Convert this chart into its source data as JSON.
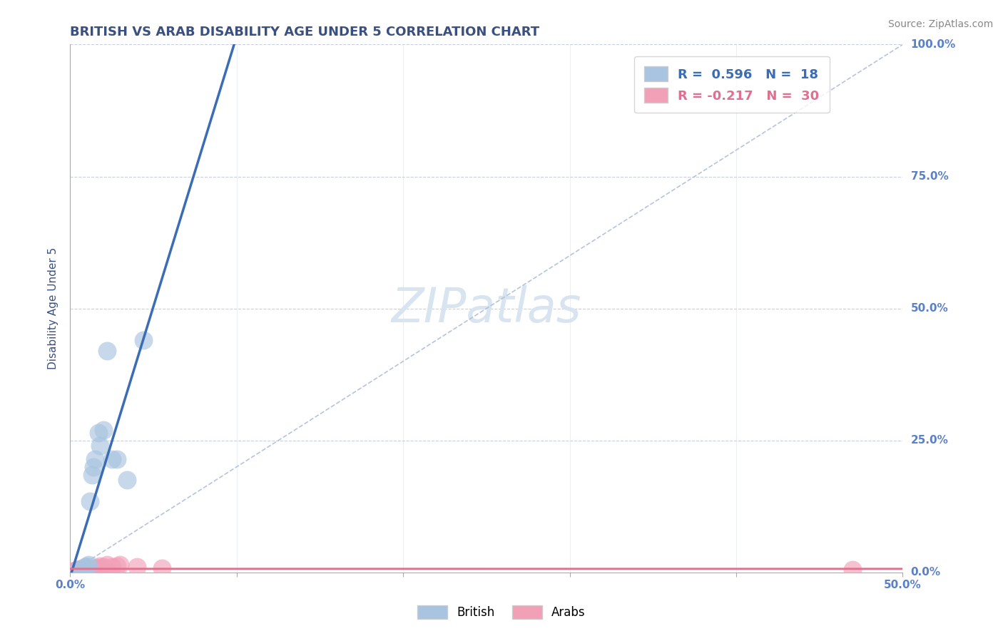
{
  "title": "BRITISH VS ARAB DISABILITY AGE UNDER 5 CORRELATION CHART",
  "source": "Source: ZipAtlas.com",
  "ylabel": "Disability Age Under 5",
  "xlim": [
    0.0,
    0.5
  ],
  "ylim": [
    0.0,
    1.0
  ],
  "xticks": [
    0.0,
    0.1,
    0.2,
    0.3,
    0.4,
    0.5
  ],
  "xticklabels": [
    "0.0%",
    "",
    "",
    "",
    "",
    "50.0%"
  ],
  "yticks": [
    0.0,
    0.25,
    0.5,
    0.75,
    1.0
  ],
  "yticklabels": [
    "0.0%",
    "25.0%",
    "50.0%",
    "75.0%",
    "100.0%"
  ],
  "british_color": "#a8c4e0",
  "arab_color": "#f2a0b8",
  "british_line_color": "#3a6db5",
  "arab_line_color": "#e07090",
  "diagonal_color": "#b0bcd8",
  "legend_british_r": "R =  0.596",
  "legend_british_n": "N =  18",
  "legend_arab_r": "R = -0.217",
  "legend_arab_n": "N =  30",
  "british_x": [
    0.004,
    0.006,
    0.008,
    0.009,
    0.01,
    0.011,
    0.012,
    0.013,
    0.014,
    0.015,
    0.017,
    0.018,
    0.02,
    0.022,
    0.025,
    0.028,
    0.034,
    0.044
  ],
  "british_y": [
    0.003,
    0.005,
    0.008,
    0.01,
    0.012,
    0.015,
    0.135,
    0.185,
    0.2,
    0.215,
    0.265,
    0.24,
    0.27,
    0.42,
    0.215,
    0.215,
    0.175,
    0.44
  ],
  "arab_x": [
    0.001,
    0.002,
    0.003,
    0.004,
    0.004,
    0.005,
    0.005,
    0.006,
    0.006,
    0.007,
    0.007,
    0.008,
    0.009,
    0.01,
    0.01,
    0.011,
    0.012,
    0.013,
    0.014,
    0.016,
    0.017,
    0.018,
    0.02,
    0.022,
    0.025,
    0.028,
    0.03,
    0.04,
    0.055,
    0.47
  ],
  "arab_y": [
    0.002,
    0.003,
    0.003,
    0.004,
    0.005,
    0.003,
    0.005,
    0.004,
    0.006,
    0.004,
    0.006,
    0.005,
    0.006,
    0.005,
    0.007,
    0.005,
    0.004,
    0.006,
    0.007,
    0.009,
    0.008,
    0.012,
    0.01,
    0.015,
    0.01,
    0.012,
    0.015,
    0.01,
    0.008,
    0.005
  ],
  "background_color": "#ffffff",
  "grid_color": "#c8d0e0",
  "title_color": "#3a5080",
  "axis_label_color": "#3a5080",
  "tick_color": "#5a80c8",
  "watermark_color": "#d8e4f0"
}
